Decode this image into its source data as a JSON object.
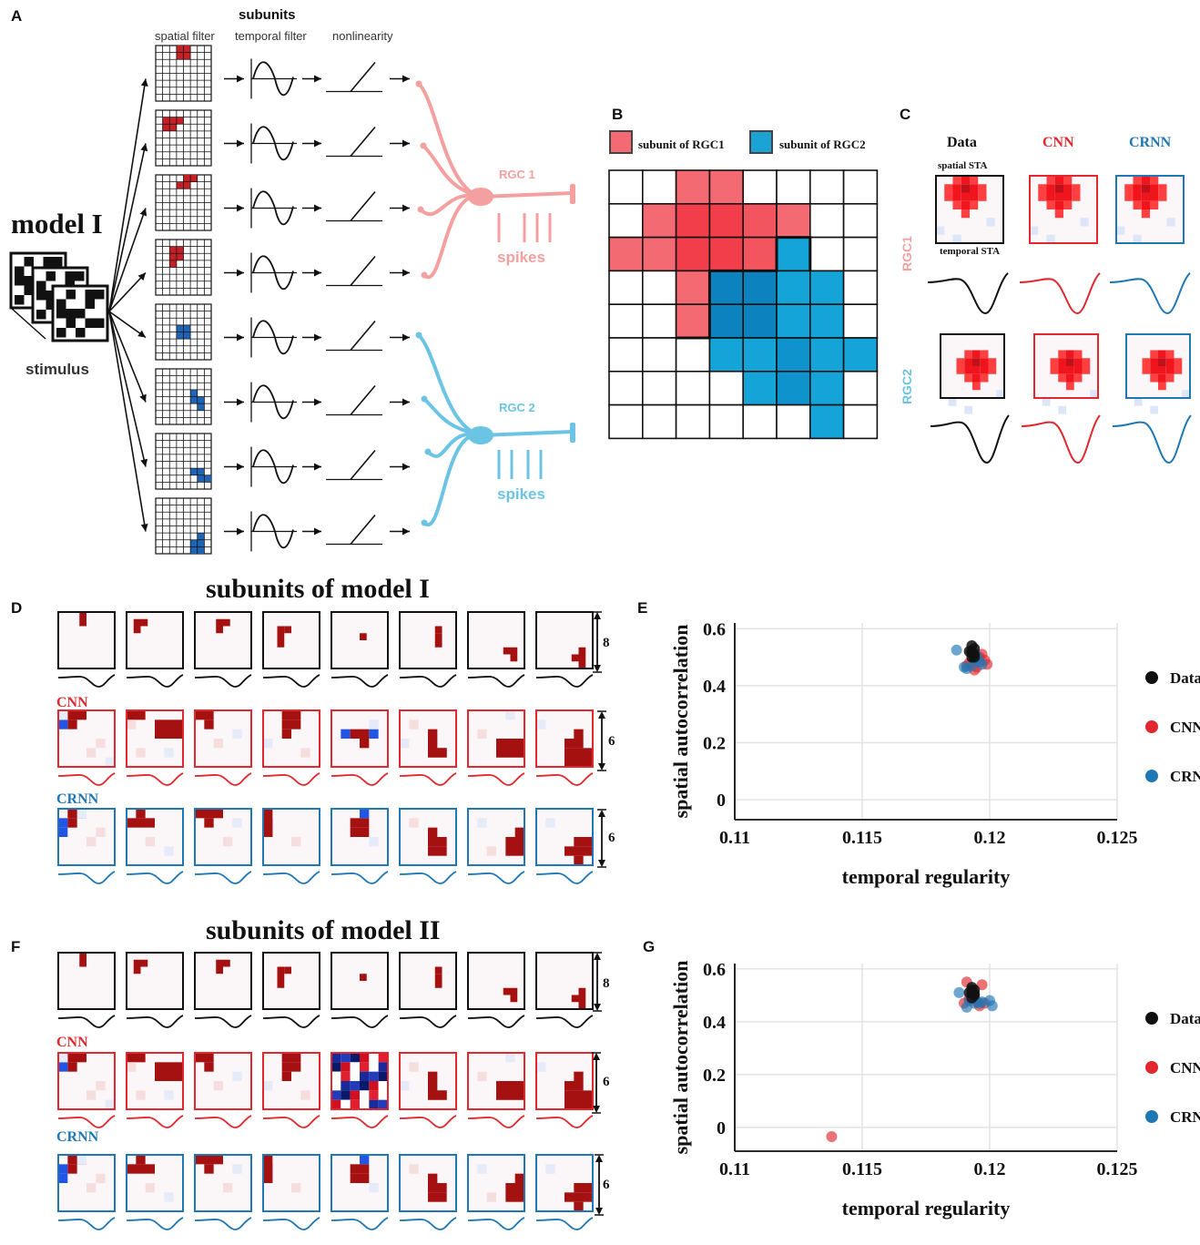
{
  "panels": {
    "A": "A",
    "B": "B",
    "C": "C",
    "D": "D",
    "E": "E",
    "F": "F",
    "G": "G"
  },
  "panel_a": {
    "subunits_title": "subunits",
    "col_spatial": "spatial filter",
    "col_temporal": "temporal filter",
    "col_nonlinearity": "nonlinearity",
    "model_title": "model I",
    "stimulus_label": "stimulus",
    "rgc1_label": "RGC 1",
    "rgc2_label": "RGC 2",
    "spikes1": "spikes",
    "spikes2": "spikes",
    "colors": {
      "rgc1": "#f4a0a0",
      "rgc2": "#6cc4e4",
      "red": "#cc1f1f",
      "blue": "#1f64b4"
    }
  },
  "panel_b": {
    "legend_rgc1": "subunit of RGC1",
    "legend_rgc2": "subunit of RGC2",
    "colors": {
      "rgc1": "#f46a72",
      "rgc2": "#1aa3d4"
    }
  },
  "panel_c": {
    "col_data": "Data",
    "col_cnn": "CNN",
    "col_crnn": "CRNN",
    "spatial_sta": "spatial STA",
    "temporal_sta": "temporal STA",
    "row1": "RGC1",
    "row2": "RGC2"
  },
  "panel_d": {
    "title": "subunits of model I",
    "cnn": "CNN",
    "crnn": "CRNN",
    "dim_data": "8",
    "dim_cnn": "6",
    "dim_crnn": "6"
  },
  "panel_f": {
    "title": "subunits of model II",
    "cnn": "CNN",
    "crnn": "CRNN",
    "dim_data": "8",
    "dim_cnn": "6",
    "dim_crnn": "6"
  },
  "chart_data": [
    {
      "type": "scatter",
      "panel": "E",
      "xlabel": "temporal regularity",
      "ylabel": "spatial autocorrelation",
      "xlim": [
        0.11,
        0.125
      ],
      "ylim": [
        -0.07,
        0.62
      ],
      "xticks": [
        "0.11",
        "0.115",
        "0.12",
        "0.125"
      ],
      "yticks": [
        "0",
        "0.2",
        "0.4",
        "0.6"
      ],
      "grid": true,
      "legend_placement": "right",
      "series": [
        {
          "name": "Data",
          "color": "#111111",
          "points": [
            [
              0.1193,
              0.54
            ],
            [
              0.1193,
              0.52
            ],
            [
              0.1194,
              0.51
            ],
            [
              0.1193,
              0.5
            ],
            [
              0.1194,
              0.53
            ],
            [
              0.1192,
              0.52
            ],
            [
              0.1194,
              0.5
            ],
            [
              0.1193,
              0.515
            ]
          ]
        },
        {
          "name": "CNN",
          "color": "#e0282e",
          "points": [
            [
              0.1192,
              0.48
            ],
            [
              0.1196,
              0.5
            ],
            [
              0.1198,
              0.49
            ],
            [
              0.1199,
              0.475
            ],
            [
              0.1195,
              0.465
            ],
            [
              0.1194,
              0.455
            ],
            [
              0.1191,
              0.47
            ],
            [
              0.1197,
              0.51
            ]
          ]
        },
        {
          "name": "CRNN",
          "color": "#1f77b4",
          "points": [
            [
              0.1187,
              0.525
            ],
            [
              0.1191,
              0.46
            ],
            [
              0.1195,
              0.505
            ],
            [
              0.1196,
              0.485
            ],
            [
              0.1193,
              0.47
            ],
            [
              0.119,
              0.465
            ],
            [
              0.1197,
              0.475
            ],
            [
              0.1194,
              0.49
            ]
          ]
        }
      ]
    },
    {
      "type": "scatter",
      "panel": "G",
      "xlabel": "temporal regularity",
      "ylabel": "spatial autocorrelation",
      "xlim": [
        0.11,
        0.125
      ],
      "ylim": [
        -0.09,
        0.62
      ],
      "xticks": [
        "0.11",
        "0.115",
        "0.12",
        "0.125"
      ],
      "yticks": [
        "0",
        "0.2",
        "0.4",
        "0.6"
      ],
      "grid": true,
      "legend_placement": "right",
      "series": [
        {
          "name": "Data",
          "color": "#111111",
          "points": [
            [
              0.1193,
              0.53
            ],
            [
              0.1193,
              0.51
            ],
            [
              0.1194,
              0.5
            ],
            [
              0.1193,
              0.52
            ],
            [
              0.1192,
              0.51
            ],
            [
              0.1194,
              0.52
            ],
            [
              0.1193,
              0.49
            ],
            [
              0.1194,
              0.505
            ]
          ]
        },
        {
          "name": "CNN",
          "color": "#e0282e",
          "points": [
            [
              0.1191,
              0.55
            ],
            [
              0.1197,
              0.54
            ],
            [
              0.119,
              0.47
            ],
            [
              0.1196,
              0.46
            ],
            [
              0.1192,
              0.49
            ],
            [
              0.1138,
              -0.035
            ],
            [
              0.1195,
              0.475
            ],
            [
              0.1198,
              0.47
            ]
          ]
        },
        {
          "name": "CRNN",
          "color": "#1f77b4",
          "points": [
            [
              0.1188,
              0.51
            ],
            [
              0.12,
              0.48
            ],
            [
              0.1201,
              0.46
            ],
            [
              0.1191,
              0.455
            ],
            [
              0.1194,
              0.47
            ],
            [
              0.1196,
              0.47
            ],
            [
              0.1192,
              0.48
            ],
            [
              0.1197,
              0.475
            ]
          ]
        }
      ]
    }
  ]
}
